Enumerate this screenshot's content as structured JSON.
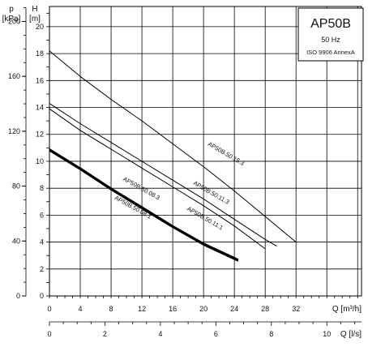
{
  "chart_data": {
    "type": "line",
    "legend": {
      "title": "AP50B",
      "frequency": "50 Hz",
      "standard": "ISO 9906 AnnexA"
    },
    "y_left_outer": {
      "label_top": "p",
      "label_unit": "[kPa]",
      "ticks": [
        "0",
        "40",
        "80",
        "120",
        "160",
        "200"
      ]
    },
    "y_left_inner": {
      "label_top": "H",
      "label_unit": "[m]",
      "ticks": [
        "0",
        "2",
        "4",
        "6",
        "8",
        "10",
        "12",
        "14",
        "16",
        "18",
        "20"
      ],
      "ylim": [
        0,
        21.5
      ]
    },
    "x_top": {
      "label": "Q [m³/h]",
      "ticks": [
        "0",
        "4",
        "8",
        "12",
        "16",
        "20",
        "24",
        "28",
        "32"
      ],
      "xlim": [
        0,
        40.5
      ]
    },
    "x_bottom": {
      "label": "Q [l/s]",
      "ticks": [
        "0",
        "2",
        "4",
        "6",
        "8",
        "10"
      ],
      "xlim": [
        0,
        11.25
      ]
    },
    "grid": true,
    "series": [
      {
        "name": "AP50B.50.15.3",
        "x": [
          0,
          4,
          8,
          12,
          16,
          20,
          24,
          28,
          32
        ],
        "y": [
          18.2,
          16.3,
          14.6,
          13.0,
          11.3,
          9.6,
          7.8,
          5.9,
          4.0
        ],
        "bold": false
      },
      {
        "name": "AP50B.50.11.3",
        "x": [
          0,
          4,
          8,
          12,
          16,
          20,
          24,
          28,
          29.5
        ],
        "y": [
          14.3,
          12.8,
          11.4,
          10.0,
          8.6,
          7.2,
          5.7,
          4.2,
          3.7
        ],
        "bold": false
      },
      {
        "name": "AP50B.50.11.1",
        "x": [
          0,
          4,
          8,
          12,
          16,
          20,
          24,
          28
        ],
        "y": [
          13.9,
          12.3,
          10.9,
          9.5,
          8.1,
          6.7,
          5.2,
          3.5
        ],
        "bold": false
      },
      {
        "name": "AP50B.50.08.3",
        "x": [
          0,
          4,
          8,
          12,
          16,
          20,
          24.5
        ],
        "y": [
          10.9,
          9.5,
          8.0,
          6.6,
          5.2,
          3.9,
          2.7
        ],
        "bold": true
      },
      {
        "name": "AP50B.50.08.1",
        "x": [
          0,
          4,
          8,
          12,
          16,
          20,
          24.5
        ],
        "y": [
          10.8,
          9.4,
          7.9,
          6.5,
          5.1,
          3.8,
          2.6
        ],
        "bold": true
      }
    ]
  }
}
